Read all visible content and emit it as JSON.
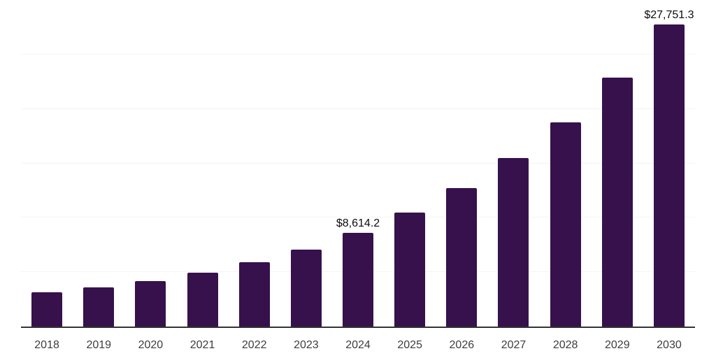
{
  "chart_data": {
    "type": "bar",
    "title": "",
    "xlabel": "",
    "ylabel": "",
    "unit_prefix": "$",
    "categories": [
      "2018",
      "2019",
      "2020",
      "2021",
      "2022",
      "2023",
      "2024",
      "2025",
      "2026",
      "2027",
      "2028",
      "2029",
      "2030"
    ],
    "values": [
      3140,
      3630,
      4200,
      4950,
      5890,
      7040,
      8614.2,
      10470,
      12720,
      15460,
      18790,
      22840,
      27751.3
    ],
    "value_labels": [
      "",
      "",
      "",
      "",
      "",
      "",
      "$8,614.2",
      "",
      "",
      "",
      "",
      "",
      "$27,751.3"
    ],
    "ylim": [
      0,
      30000
    ],
    "gridline_values": [
      5000,
      10000,
      15000,
      20000,
      25000,
      30000
    ],
    "grid": true,
    "legend": false,
    "colors": {
      "bar": "#36114b",
      "axis": "#333333",
      "gridline": "#f4f4f4",
      "tick_label": "#3d3d3d",
      "value_label": "#0d0d0d",
      "background": "#ffffff"
    }
  }
}
